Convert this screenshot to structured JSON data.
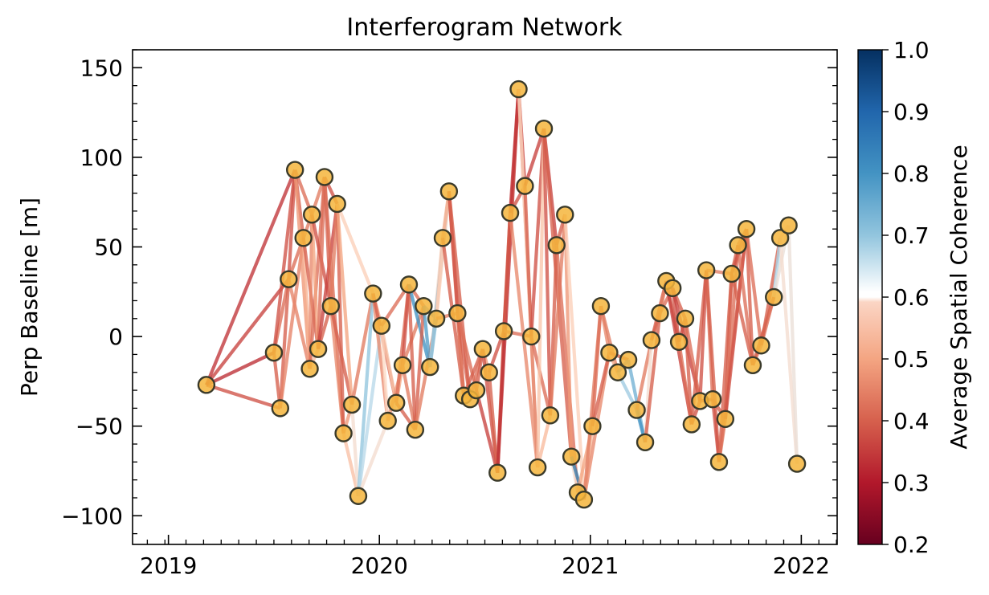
{
  "chart_data": {
    "type": "scatter",
    "title": "Interferogram Network",
    "xlabel": "",
    "ylabel": "Perp Baseline [m]",
    "xlim": [
      2018.83,
      2022.17
    ],
    "ylim": [
      -116,
      160
    ],
    "x_ticks": [
      2019,
      2020,
      2021,
      2022
    ],
    "x_tick_labels": [
      "2019",
      "2020",
      "2021",
      "2022"
    ],
    "y_ticks": [
      -100,
      -50,
      0,
      50,
      100,
      150
    ],
    "y_tick_labels": [
      "−100",
      "−50",
      "0",
      "50",
      "100",
      "150"
    ],
    "grid": false,
    "colorbar": {
      "label": "Average Spatial Coherence",
      "range": [
        0.2,
        1.0
      ],
      "ticks": [
        "0.2",
        "0.3",
        "0.4",
        "0.5",
        "0.6",
        "0.7",
        "0.8",
        "0.9",
        "1.0"
      ],
      "colormap": "RdBu (masked white at 0.7)"
    },
    "marker_fill": "#f5b53c",
    "marker_edge": "#3a3a2a",
    "points": [
      [
        2019.18,
        -27
      ],
      [
        2019.5,
        -9
      ],
      [
        2019.53,
        -40
      ],
      [
        2019.57,
        32
      ],
      [
        2019.6,
        93
      ],
      [
        2019.64,
        55
      ],
      [
        2019.67,
        -18
      ],
      [
        2019.68,
        68
      ],
      [
        2019.71,
        -7
      ],
      [
        2019.74,
        89
      ],
      [
        2019.77,
        17
      ],
      [
        2019.8,
        74
      ],
      [
        2019.83,
        -54
      ],
      [
        2019.87,
        -38
      ],
      [
        2019.9,
        -89
      ],
      [
        2019.97,
        24
      ],
      [
        2020.01,
        6
      ],
      [
        2020.04,
        -47
      ],
      [
        2020.08,
        -37
      ],
      [
        2020.11,
        -16
      ],
      [
        2020.14,
        29
      ],
      [
        2020.17,
        -52
      ],
      [
        2020.21,
        17
      ],
      [
        2020.24,
        -17
      ],
      [
        2020.27,
        10
      ],
      [
        2020.3,
        55
      ],
      [
        2020.33,
        81
      ],
      [
        2020.37,
        13
      ],
      [
        2020.4,
        -33
      ],
      [
        2020.43,
        -35
      ],
      [
        2020.46,
        -30
      ],
      [
        2020.49,
        -7
      ],
      [
        2020.52,
        -20
      ],
      [
        2020.56,
        -76
      ],
      [
        2020.59,
        3
      ],
      [
        2020.62,
        69
      ],
      [
        2020.66,
        138
      ],
      [
        2020.69,
        84
      ],
      [
        2020.72,
        0
      ],
      [
        2020.75,
        -73
      ],
      [
        2020.78,
        116
      ],
      [
        2020.81,
        -44
      ],
      [
        2020.84,
        51
      ],
      [
        2020.88,
        68
      ],
      [
        2020.91,
        -67
      ],
      [
        2020.94,
        -87
      ],
      [
        2020.97,
        -91
      ],
      [
        2021.01,
        -50
      ],
      [
        2021.05,
        17
      ],
      [
        2021.09,
        -9
      ],
      [
        2021.13,
        -20
      ],
      [
        2021.18,
        -13
      ],
      [
        2021.22,
        -41
      ],
      [
        2021.26,
        -59
      ],
      [
        2021.29,
        -2
      ],
      [
        2021.33,
        13
      ],
      [
        2021.36,
        31
      ],
      [
        2021.39,
        27
      ],
      [
        2021.42,
        -3
      ],
      [
        2021.45,
        10
      ],
      [
        2021.48,
        -49
      ],
      [
        2021.52,
        -36
      ],
      [
        2021.55,
        37
      ],
      [
        2021.58,
        -35
      ],
      [
        2021.61,
        -70
      ],
      [
        2021.64,
        -46
      ],
      [
        2021.67,
        35
      ],
      [
        2021.7,
        51
      ],
      [
        2021.74,
        60
      ],
      [
        2021.77,
        -16
      ],
      [
        2021.81,
        -5
      ],
      [
        2021.87,
        22
      ],
      [
        2021.9,
        55
      ],
      [
        2021.94,
        62
      ],
      [
        2021.98,
        -71
      ]
    ],
    "edges": [
      [
        0,
        1,
        0.33
      ],
      [
        0,
        2,
        0.38
      ],
      [
        0,
        3,
        0.36
      ],
      [
        0,
        4,
        0.34
      ],
      [
        1,
        2,
        0.4
      ],
      [
        1,
        3,
        0.42
      ],
      [
        1,
        4,
        0.38
      ],
      [
        2,
        3,
        0.4
      ],
      [
        2,
        5,
        0.45
      ],
      [
        3,
        4,
        0.38
      ],
      [
        3,
        5,
        0.42
      ],
      [
        3,
        6,
        0.45
      ],
      [
        4,
        5,
        0.4
      ],
      [
        4,
        6,
        0.48
      ],
      [
        4,
        7,
        0.42
      ],
      [
        5,
        6,
        0.52
      ],
      [
        5,
        7,
        0.44
      ],
      [
        5,
        8,
        0.4
      ],
      [
        6,
        7,
        0.46
      ],
      [
        6,
        8,
        0.55
      ],
      [
        6,
        9,
        0.42
      ],
      [
        7,
        8,
        0.5
      ],
      [
        7,
        9,
        0.44
      ],
      [
        7,
        10,
        0.38
      ],
      [
        8,
        9,
        0.42
      ],
      [
        8,
        10,
        0.4
      ],
      [
        8,
        11,
        0.36
      ],
      [
        9,
        10,
        0.4
      ],
      [
        9,
        11,
        0.38
      ],
      [
        9,
        12,
        0.42
      ],
      [
        10,
        11,
        0.44
      ],
      [
        10,
        12,
        0.46
      ],
      [
        10,
        13,
        0.4
      ],
      [
        11,
        12,
        0.4
      ],
      [
        11,
        13,
        0.5
      ],
      [
        11,
        15,
        0.58
      ],
      [
        12,
        13,
        0.48
      ],
      [
        12,
        14,
        0.55
      ],
      [
        13,
        14,
        0.62
      ],
      [
        13,
        15,
        0.44
      ],
      [
        14,
        15,
        0.8
      ],
      [
        14,
        16,
        0.74
      ],
      [
        14,
        17,
        0.62
      ],
      [
        15,
        16,
        0.52
      ],
      [
        15,
        17,
        0.46
      ],
      [
        15,
        18,
        0.4
      ],
      [
        16,
        17,
        0.6
      ],
      [
        16,
        18,
        0.56
      ],
      [
        16,
        20,
        0.42
      ],
      [
        17,
        18,
        0.64
      ],
      [
        17,
        19,
        0.48
      ],
      [
        18,
        19,
        0.5
      ],
      [
        18,
        20,
        0.42
      ],
      [
        18,
        21,
        0.4
      ],
      [
        19,
        20,
        0.38
      ],
      [
        19,
        21,
        0.44
      ],
      [
        19,
        22,
        0.44
      ],
      [
        20,
        21,
        0.4
      ],
      [
        20,
        22,
        0.42
      ],
      [
        20,
        23,
        0.9
      ],
      [
        21,
        22,
        0.4
      ],
      [
        21,
        24,
        0.44
      ],
      [
        22,
        23,
        0.88
      ],
      [
        22,
        24,
        0.86
      ],
      [
        23,
        24,
        0.8
      ],
      [
        23,
        25,
        0.62
      ],
      [
        23,
        26,
        0.82
      ],
      [
        24,
        25,
        0.56
      ],
      [
        24,
        26,
        0.58
      ],
      [
        24,
        27,
        0.44
      ],
      [
        25,
        26,
        0.52
      ],
      [
        25,
        28,
        0.4
      ],
      [
        26,
        27,
        0.42
      ],
      [
        26,
        28,
        0.38
      ],
      [
        26,
        29,
        0.4
      ],
      [
        27,
        28,
        0.44
      ],
      [
        27,
        29,
        0.4
      ],
      [
        27,
        30,
        0.42
      ],
      [
        28,
        29,
        0.46
      ],
      [
        28,
        31,
        0.4
      ],
      [
        29,
        30,
        0.44
      ],
      [
        29,
        31,
        0.42
      ],
      [
        30,
        31,
        0.4
      ],
      [
        30,
        33,
        0.36
      ],
      [
        31,
        32,
        0.48
      ],
      [
        31,
        33,
        0.38
      ],
      [
        32,
        33,
        0.4
      ],
      [
        32,
        34,
        0.38
      ],
      [
        33,
        34,
        0.4
      ],
      [
        33,
        35,
        0.36
      ],
      [
        33,
        36,
        0.34
      ],
      [
        34,
        35,
        0.4
      ],
      [
        34,
        36,
        0.38
      ],
      [
        34,
        38,
        0.42
      ],
      [
        35,
        36,
        0.34
      ],
      [
        35,
        37,
        0.38
      ],
      [
        35,
        39,
        0.46
      ],
      [
        36,
        37,
        0.36
      ],
      [
        36,
        38,
        0.4
      ],
      [
        36,
        39,
        0.6
      ],
      [
        37,
        38,
        0.4
      ],
      [
        37,
        40,
        0.36
      ],
      [
        38,
        39,
        0.44
      ],
      [
        38,
        40,
        0.38
      ],
      [
        38,
        41,
        0.42
      ],
      [
        39,
        40,
        0.56
      ],
      [
        39,
        41,
        0.54
      ],
      [
        40,
        41,
        0.38
      ],
      [
        40,
        42,
        0.36
      ],
      [
        40,
        44,
        0.4
      ],
      [
        41,
        42,
        0.4
      ],
      [
        41,
        43,
        0.44
      ],
      [
        42,
        43,
        0.4
      ],
      [
        42,
        45,
        0.42
      ],
      [
        43,
        44,
        0.48
      ],
      [
        43,
        46,
        0.58
      ],
      [
        44,
        45,
        0.62
      ],
      [
        44,
        46,
        0.92
      ],
      [
        45,
        46,
        0.56
      ],
      [
        45,
        47,
        0.5
      ],
      [
        46,
        47,
        0.54
      ],
      [
        46,
        48,
        0.44
      ],
      [
        46,
        49,
        0.46
      ],
      [
        47,
        48,
        0.42
      ],
      [
        47,
        49,
        0.4
      ],
      [
        48,
        49,
        0.46
      ],
      [
        48,
        50,
        0.44
      ],
      [
        49,
        50,
        0.52
      ],
      [
        49,
        51,
        0.4
      ],
      [
        50,
        51,
        0.86
      ],
      [
        50,
        52,
        0.78
      ],
      [
        51,
        53,
        0.84
      ],
      [
        52,
        53,
        0.9
      ],
      [
        52,
        54,
        0.44
      ],
      [
        53,
        54,
        0.62
      ],
      [
        53,
        55,
        0.4
      ],
      [
        54,
        55,
        0.42
      ],
      [
        54,
        56,
        0.4
      ],
      [
        55,
        56,
        0.44
      ],
      [
        55,
        57,
        0.42
      ],
      [
        56,
        57,
        0.38
      ],
      [
        56,
        58,
        0.4
      ],
      [
        56,
        60,
        0.36
      ],
      [
        57,
        58,
        0.38
      ],
      [
        57,
        59,
        0.4
      ],
      [
        57,
        61,
        0.36
      ],
      [
        58,
        59,
        0.38
      ],
      [
        58,
        60,
        0.42
      ],
      [
        59,
        60,
        0.4
      ],
      [
        59,
        61,
        0.42
      ],
      [
        60,
        61,
        0.38
      ],
      [
        60,
        62,
        0.4
      ],
      [
        61,
        62,
        0.38
      ],
      [
        61,
        63,
        0.4
      ],
      [
        62,
        63,
        0.42
      ],
      [
        62,
        64,
        0.4
      ],
      [
        62,
        66,
        0.44
      ],
      [
        63,
        64,
        0.38
      ],
      [
        63,
        65,
        0.4
      ],
      [
        64,
        65,
        0.44
      ],
      [
        64,
        66,
        0.4
      ],
      [
        64,
        68,
        0.42
      ],
      [
        65,
        66,
        0.4
      ],
      [
        65,
        67,
        0.42
      ],
      [
        65,
        68,
        0.38
      ],
      [
        66,
        67,
        0.4
      ],
      [
        66,
        68,
        0.38
      ],
      [
        66,
        69,
        0.4
      ],
      [
        67,
        68,
        0.44
      ],
      [
        67,
        69,
        0.42
      ],
      [
        68,
        69,
        0.4
      ],
      [
        68,
        70,
        0.42
      ],
      [
        69,
        70,
        0.44
      ],
      [
        69,
        71,
        0.4
      ],
      [
        70,
        71,
        0.42
      ],
      [
        70,
        72,
        0.4
      ],
      [
        71,
        72,
        0.76
      ],
      [
        71,
        73,
        0.64
      ],
      [
        72,
        73,
        0.6
      ],
      [
        72,
        74,
        0.62
      ],
      [
        73,
        74,
        0.64
      ]
    ]
  }
}
